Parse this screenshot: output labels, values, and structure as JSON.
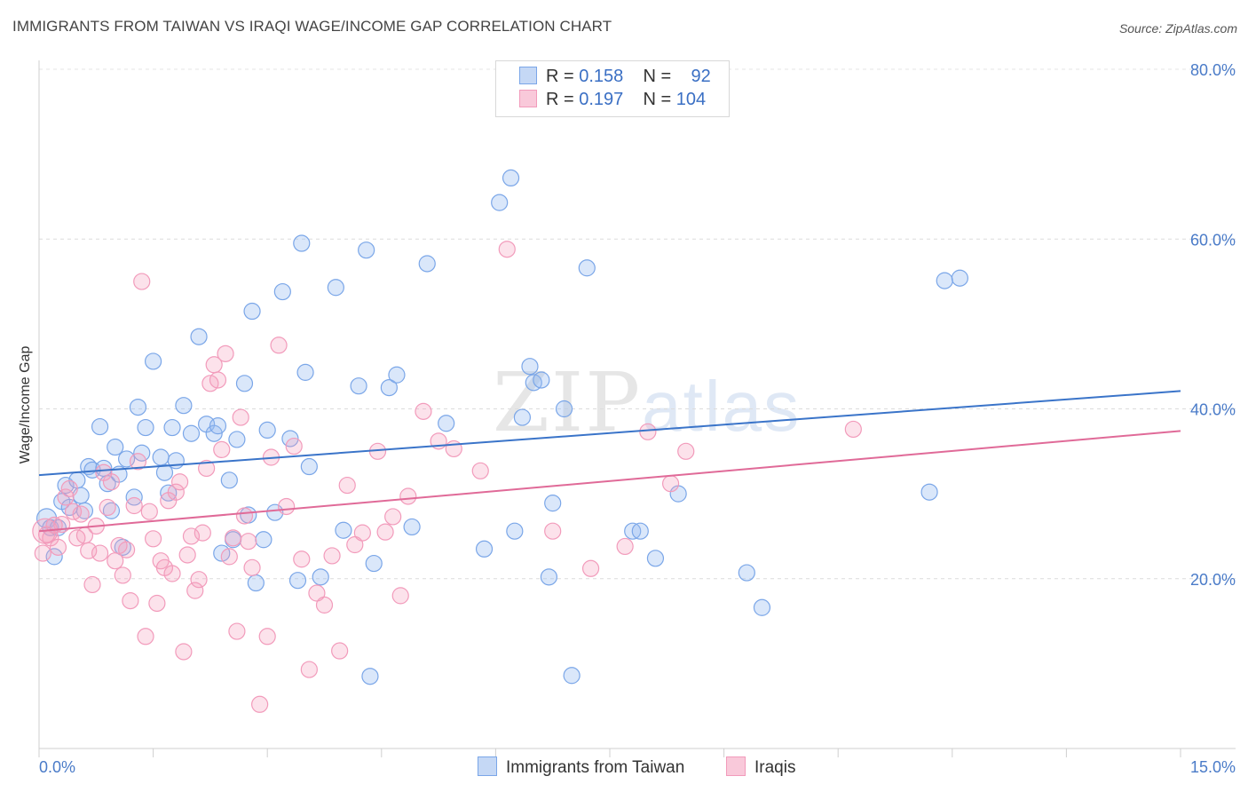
{
  "chart_data": {
    "type": "scatter",
    "title": "IMMIGRANTS FROM TAIWAN VS IRAQI WAGE/INCOME GAP CORRELATION CHART",
    "source": "Source: ZipAtlas.com",
    "xlabel": "",
    "ylabel": "Wage/Income Gap",
    "xlim": [
      0,
      15
    ],
    "ylim": [
      0,
      80
    ],
    "x_tick_labels": [
      "0.0%",
      "15.0%"
    ],
    "y_ticks": [
      20,
      40,
      60,
      80
    ],
    "y_tick_labels": [
      "20.0%",
      "40.0%",
      "60.0%",
      "80.0%"
    ],
    "grid": true,
    "watermark": {
      "zip": "ZIP",
      "atlas": "atlas"
    },
    "legend": [
      {
        "name": "Immigrants from Taiwan",
        "r_label": "R =",
        "r": "0.158",
        "n_label": "N =",
        "n": "92"
      },
      {
        "name": "Iraqis",
        "r_label": "R =",
        "r": "0.197",
        "n_label": "N =",
        "n": "104"
      }
    ],
    "series": [
      {
        "name": "Immigrants from Taiwan",
        "color": "#7aa6e8",
        "line_color": "#3a74c9",
        "trend": {
          "x": [
            0,
            15
          ],
          "y": [
            32.2,
            42.1
          ]
        },
        "points": [
          [
            0.1,
            27.1
          ],
          [
            0.15,
            26.0
          ],
          [
            0.2,
            22.6
          ],
          [
            0.25,
            26.0
          ],
          [
            0.3,
            29.1
          ],
          [
            0.35,
            31.0
          ],
          [
            0.4,
            28.4
          ],
          [
            0.5,
            31.6
          ],
          [
            0.55,
            29.8
          ],
          [
            0.6,
            28.0
          ],
          [
            0.65,
            33.2
          ],
          [
            0.7,
            32.8
          ],
          [
            0.8,
            37.9
          ],
          [
            0.85,
            33.0
          ],
          [
            0.9,
            31.2
          ],
          [
            0.95,
            28.0
          ],
          [
            1.0,
            35.5
          ],
          [
            1.05,
            32.3
          ],
          [
            1.1,
            23.7
          ],
          [
            1.15,
            34.1
          ],
          [
            1.25,
            29.6
          ],
          [
            1.3,
            40.2
          ],
          [
            1.35,
            34.8
          ],
          [
            1.4,
            37.8
          ],
          [
            1.5,
            45.6
          ],
          [
            1.6,
            34.3
          ],
          [
            1.65,
            32.5
          ],
          [
            1.7,
            30.1
          ],
          [
            1.75,
            37.8
          ],
          [
            1.8,
            33.9
          ],
          [
            1.9,
            40.4
          ],
          [
            2.0,
            37.1
          ],
          [
            2.1,
            48.5
          ],
          [
            2.2,
            38.2
          ],
          [
            2.3,
            37.1
          ],
          [
            2.35,
            38.0
          ],
          [
            2.4,
            23.0
          ],
          [
            2.5,
            31.6
          ],
          [
            2.55,
            24.6
          ],
          [
            2.6,
            36.4
          ],
          [
            2.7,
            43.0
          ],
          [
            2.75,
            27.5
          ],
          [
            2.8,
            51.5
          ],
          [
            2.85,
            19.5
          ],
          [
            2.95,
            24.6
          ],
          [
            3.0,
            37.5
          ],
          [
            3.1,
            27.8
          ],
          [
            3.2,
            53.8
          ],
          [
            3.3,
            36.5
          ],
          [
            3.4,
            19.8
          ],
          [
            3.45,
            59.5
          ],
          [
            3.5,
            44.3
          ],
          [
            3.55,
            33.2
          ],
          [
            3.7,
            20.2
          ],
          [
            3.9,
            54.3
          ],
          [
            4.0,
            25.7
          ],
          [
            4.2,
            42.7
          ],
          [
            4.3,
            58.7
          ],
          [
            4.35,
            8.5
          ],
          [
            4.4,
            21.8
          ],
          [
            4.6,
            42.5
          ],
          [
            4.7,
            44.0
          ],
          [
            4.9,
            26.1
          ],
          [
            5.1,
            57.1
          ],
          [
            5.35,
            38.3
          ],
          [
            5.85,
            23.5
          ],
          [
            6.05,
            64.3
          ],
          [
            6.2,
            67.2
          ],
          [
            6.25,
            25.6
          ],
          [
            6.35,
            39.0
          ],
          [
            6.45,
            45.0
          ],
          [
            6.5,
            43.1
          ],
          [
            6.6,
            43.4
          ],
          [
            6.7,
            20.2
          ],
          [
            6.75,
            28.9
          ],
          [
            6.9,
            40.0
          ],
          [
            7.0,
            8.6
          ],
          [
            7.2,
            56.6
          ],
          [
            7.8,
            25.6
          ],
          [
            7.9,
            25.6
          ],
          [
            8.1,
            22.4
          ],
          [
            8.4,
            30.0
          ],
          [
            9.3,
            20.7
          ],
          [
            9.5,
            16.6
          ],
          [
            11.7,
            30.2
          ],
          [
            11.9,
            55.1
          ],
          [
            12.1,
            55.4
          ]
        ]
      },
      {
        "name": "Iraqis",
        "color": "#f29bbb",
        "line_color": "#e06a98",
        "trend": {
          "x": [
            0,
            15
          ],
          "y": [
            25.6,
            37.4
          ]
        },
        "points": [
          [
            0.05,
            23.0
          ],
          [
            0.1,
            25.2
          ],
          [
            0.15,
            24.8
          ],
          [
            0.2,
            26.3
          ],
          [
            0.25,
            23.7
          ],
          [
            0.3,
            26.4
          ],
          [
            0.35,
            29.6
          ],
          [
            0.4,
            30.6
          ],
          [
            0.45,
            27.9
          ],
          [
            0.5,
            24.8
          ],
          [
            0.55,
            27.6
          ],
          [
            0.6,
            25.1
          ],
          [
            0.65,
            23.3
          ],
          [
            0.7,
            19.3
          ],
          [
            0.75,
            26.2
          ],
          [
            0.8,
            23.0
          ],
          [
            0.85,
            32.5
          ],
          [
            0.9,
            28.4
          ],
          [
            0.95,
            31.4
          ],
          [
            1.0,
            22.1
          ],
          [
            1.05,
            23.9
          ],
          [
            1.1,
            20.4
          ],
          [
            1.15,
            23.4
          ],
          [
            1.2,
            17.4
          ],
          [
            1.25,
            28.6
          ],
          [
            1.3,
            33.8
          ],
          [
            1.35,
            55.0
          ],
          [
            1.4,
            13.2
          ],
          [
            1.45,
            27.9
          ],
          [
            1.5,
            24.7
          ],
          [
            1.55,
            17.1
          ],
          [
            1.6,
            22.1
          ],
          [
            1.65,
            21.3
          ],
          [
            1.7,
            29.2
          ],
          [
            1.75,
            20.6
          ],
          [
            1.8,
            30.2
          ],
          [
            1.85,
            31.4
          ],
          [
            1.9,
            11.4
          ],
          [
            1.95,
            22.8
          ],
          [
            2.0,
            25.0
          ],
          [
            2.05,
            18.6
          ],
          [
            2.1,
            19.9
          ],
          [
            2.15,
            25.4
          ],
          [
            2.2,
            33.0
          ],
          [
            2.25,
            43.0
          ],
          [
            2.3,
            45.2
          ],
          [
            2.35,
            43.4
          ],
          [
            2.4,
            35.2
          ],
          [
            2.45,
            46.5
          ],
          [
            2.5,
            22.6
          ],
          [
            2.55,
            24.8
          ],
          [
            2.6,
            13.8
          ],
          [
            2.65,
            39.0
          ],
          [
            2.7,
            27.4
          ],
          [
            2.75,
            24.4
          ],
          [
            2.8,
            21.3
          ],
          [
            2.9,
            5.2
          ],
          [
            3.0,
            13.2
          ],
          [
            3.05,
            34.3
          ],
          [
            3.15,
            47.5
          ],
          [
            3.25,
            28.5
          ],
          [
            3.35,
            35.6
          ],
          [
            3.45,
            22.3
          ],
          [
            3.55,
            9.3
          ],
          [
            3.65,
            18.3
          ],
          [
            3.75,
            16.9
          ],
          [
            3.85,
            22.7
          ],
          [
            3.95,
            11.5
          ],
          [
            4.05,
            31.0
          ],
          [
            4.15,
            24.0
          ],
          [
            4.25,
            25.4
          ],
          [
            4.45,
            35.0
          ],
          [
            4.55,
            25.5
          ],
          [
            4.65,
            27.3
          ],
          [
            4.75,
            18.0
          ],
          [
            4.85,
            29.7
          ],
          [
            5.05,
            39.7
          ],
          [
            5.25,
            36.2
          ],
          [
            5.45,
            35.3
          ],
          [
            5.8,
            32.7
          ],
          [
            6.15,
            58.8
          ],
          [
            6.75,
            25.6
          ],
          [
            7.25,
            21.2
          ],
          [
            7.7,
            23.8
          ],
          [
            8.0,
            37.3
          ],
          [
            8.3,
            31.2
          ],
          [
            8.5,
            35.0
          ],
          [
            10.7,
            37.6
          ]
        ]
      }
    ]
  }
}
